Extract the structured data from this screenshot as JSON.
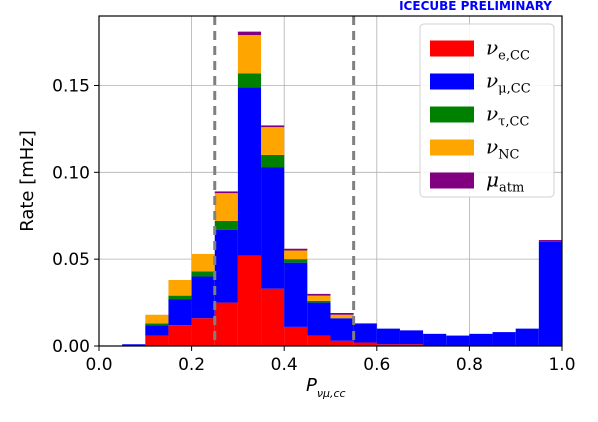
{
  "chart_data": {
    "type": "bar",
    "stacked": true,
    "histogram": true,
    "annotation": "ICECUBE PRELIMINARY",
    "xlabel": "P",
    "xlabel_subscript": "νμ,cc",
    "ylabel": "Rate [mHz]",
    "xlim": [
      0.0,
      1.0
    ],
    "ylim": [
      0.0,
      0.19
    ],
    "xticks": [
      "0.0",
      "0.2",
      "0.4",
      "0.6",
      "0.8",
      "1.0"
    ],
    "yticks": [
      "0.00",
      "0.05",
      "0.10",
      "0.15"
    ],
    "grid": true,
    "legend_position": "top-right",
    "vlines": [
      0.25,
      0.55
    ],
    "bin_edges": [
      0.0,
      0.05,
      0.1,
      0.15,
      0.2,
      0.25,
      0.3,
      0.35,
      0.4,
      0.45,
      0.5,
      0.55,
      0.6,
      0.65,
      0.7,
      0.75,
      0.8,
      0.85,
      0.9,
      0.95,
      1.0
    ],
    "series": [
      {
        "name": "ν",
        "sub": "e,CC",
        "color": "#ff0000",
        "values": [
          0.0,
          0.0,
          0.006,
          0.012,
          0.016,
          0.025,
          0.052,
          0.033,
          0.011,
          0.006,
          0.003,
          0.002,
          0.001,
          0.001,
          0.0,
          0.0,
          0.0,
          0.0,
          0.0,
          0.0
        ]
      },
      {
        "name": "ν",
        "sub": "μ,CC",
        "color": "#0000ff",
        "values": [
          0.0,
          0.001,
          0.006,
          0.015,
          0.024,
          0.042,
          0.097,
          0.07,
          0.037,
          0.019,
          0.013,
          0.011,
          0.009,
          0.008,
          0.007,
          0.006,
          0.007,
          0.008,
          0.01,
          0.06
        ]
      },
      {
        "name": "ν",
        "sub": "τ,CC",
        "color": "#008000",
        "values": [
          0.0,
          0.0,
          0.001,
          0.002,
          0.003,
          0.005,
          0.008,
          0.007,
          0.002,
          0.001,
          0.0,
          0.0,
          0.0,
          0.0,
          0.0,
          0.0,
          0.0,
          0.0,
          0.0,
          0.0
        ]
      },
      {
        "name": "ν",
        "sub": "NC",
        "color": "#ffa500",
        "values": [
          0.0,
          0.0,
          0.005,
          0.009,
          0.01,
          0.016,
          0.022,
          0.016,
          0.005,
          0.003,
          0.002,
          0.0,
          0.0,
          0.0,
          0.0,
          0.0,
          0.0,
          0.0,
          0.0,
          0.0
        ]
      },
      {
        "name": "μ",
        "sub": "atm",
        "color": "#800080",
        "values": [
          0.0,
          0.0,
          0.0,
          0.0,
          0.0,
          0.001,
          0.002,
          0.001,
          0.001,
          0.001,
          0.001,
          0.0,
          0.0,
          0.0,
          0.0,
          0.0,
          0.0,
          0.0,
          0.0,
          0.001
        ]
      }
    ]
  }
}
